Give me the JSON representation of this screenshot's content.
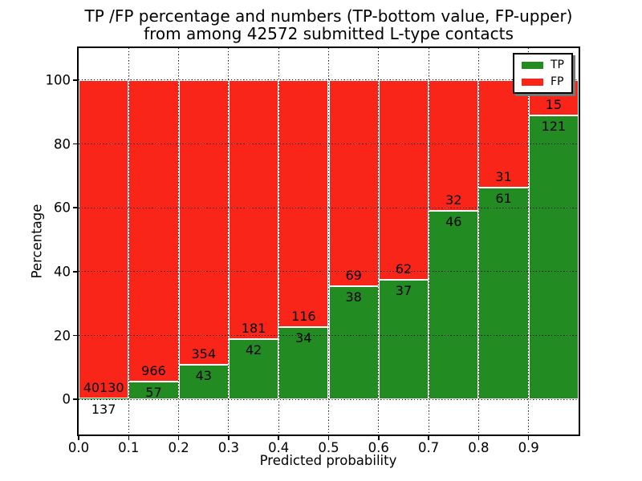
{
  "title": {
    "line1": "TP /FP percentage and numbers (TP-bottom value, FP-upper)",
    "line2": "from among 42572 submitted L-type contacts"
  },
  "axes": {
    "xlabel": "Predicted probability",
    "ylabel": "Percentage",
    "x_ticks": [
      "0.0",
      "0.1",
      "0.2",
      "0.3",
      "0.4",
      "0.5",
      "0.6",
      "0.7",
      "0.8",
      "0.9"
    ],
    "y_ticks": [
      "0",
      "20",
      "40",
      "60",
      "80",
      "100"
    ]
  },
  "legend": {
    "position": "upper right",
    "entries": [
      {
        "label": "TP",
        "color": "#228b22"
      },
      {
        "label": "FP",
        "color": "#fa2519"
      }
    ]
  },
  "chart_data": {
    "type": "bar",
    "stacked": true,
    "normalized_to_percent": true,
    "title": "TP /FP percentage and numbers (TP-bottom value, FP-upper) from among 42572 submitted L-type contacts",
    "xlabel": "Predicted probability",
    "ylabel": "Percentage",
    "xlim": [
      0.0,
      1.0
    ],
    "ylim": [
      -11,
      110
    ],
    "grid": true,
    "grid_style": "dotted",
    "legend_position": "upper right",
    "total_contacts": 42572,
    "bin_edges": [
      0.0,
      0.1,
      0.2,
      0.3,
      0.4,
      0.5,
      0.6,
      0.7,
      0.8,
      0.9,
      1.0
    ],
    "series": [
      {
        "name": "TP",
        "color": "#228b22",
        "counts": [
          137,
          57,
          43,
          42,
          34,
          38,
          37,
          46,
          61,
          121
        ]
      },
      {
        "name": "FP",
        "color": "#fa2519",
        "counts": [
          40130,
          966,
          354,
          181,
          116,
          69,
          62,
          32,
          31,
          15
        ]
      }
    ],
    "tp_percent": [
      0.34,
      5.57,
      10.83,
      18.83,
      22.67,
      35.51,
      37.37,
      58.97,
      66.3,
      88.97
    ]
  },
  "colors": {
    "tp": "#228b22",
    "fp": "#fa2519",
    "grid": "#000000",
    "background": "#ffffff",
    "text": "#000000"
  }
}
